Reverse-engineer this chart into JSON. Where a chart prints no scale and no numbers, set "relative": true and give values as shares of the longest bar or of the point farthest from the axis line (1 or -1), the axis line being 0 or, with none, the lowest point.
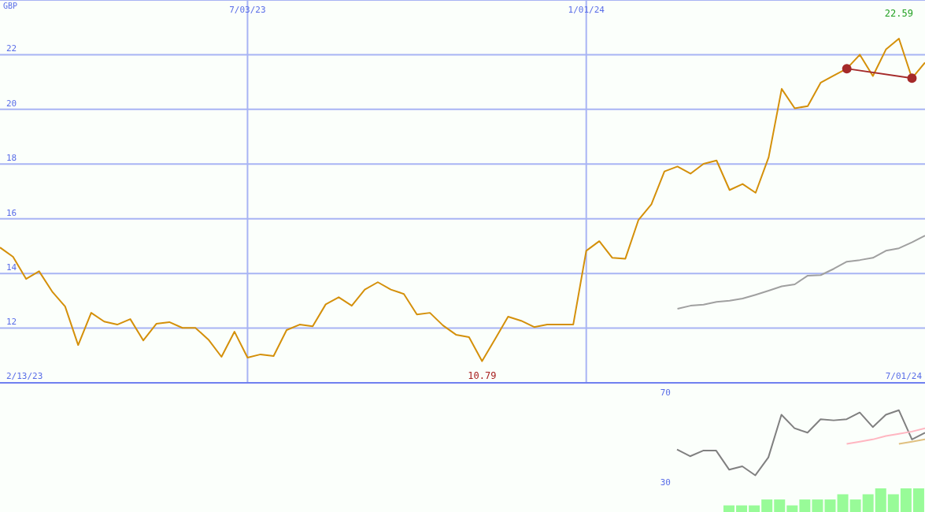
{
  "chart_data": [
    {
      "type": "line",
      "ylabel": "GBP",
      "x": [
        "2023-02-20",
        "2023-02-27",
        "2023-03-06",
        "2023-03-13",
        "2023-03-20",
        "2023-03-27",
        "2023-04-03",
        "2023-04-10",
        "2023-04-17",
        "2023-04-24",
        "2023-05-01",
        "2023-05-08",
        "2023-05-15",
        "2023-05-22",
        "2023-05-29",
        "2023-06-05",
        "2023-06-12",
        "2023-06-19",
        "2023-06-26",
        "2023-07-03",
        "2023-07-10",
        "2023-07-17",
        "2023-07-24",
        "2023-07-31",
        "2023-08-07",
        "2023-08-14",
        "2023-08-21",
        "2023-08-28",
        "2023-09-04",
        "2023-09-11",
        "2023-09-18",
        "2023-09-25",
        "2023-10-02",
        "2023-10-09",
        "2023-10-16",
        "2023-10-23",
        "2023-10-30",
        "2023-11-06",
        "2023-11-13",
        "2023-11-20",
        "2023-11-27",
        "2023-12-04",
        "2023-12-11",
        "2023-12-18",
        "2023-12-25",
        "2024-01-01",
        "2024-01-08",
        "2024-01-15",
        "2024-01-22",
        "2024-01-29",
        "2024-02-05",
        "2024-02-12",
        "2024-02-19",
        "2024-02-26",
        "2024-03-04",
        "2024-03-11",
        "2024-03-18",
        "2024-03-25",
        "2024-04-01",
        "2024-04-08",
        "2024-04-15",
        "2024-04-22",
        "2024-04-29",
        "2024-05-06",
        "2024-05-13",
        "2024-05-20",
        "2024-05-27",
        "2024-06-03",
        "2024-06-10",
        "2024-06-17",
        "2024-06-24",
        "2024-07-01"
      ],
      "xlim": [
        "2023-02-20",
        "2024-07-01"
      ],
      "xticks": [
        {
          "value": "2023-07-03",
          "label": "7/03/23"
        },
        {
          "value": "2024-01-01",
          "label": "1/01/24"
        }
      ],
      "ylim": [
        10,
        24
      ],
      "yticks": [
        12,
        14,
        16,
        18,
        20,
        22
      ],
      "grid": true,
      "series": [
        {
          "color": "#d4900a",
          "values": [
            14.95,
            14.61,
            13.8,
            14.08,
            13.34,
            12.79,
            11.38,
            12.56,
            12.24,
            12.13,
            12.33,
            11.55,
            12.16,
            12.22,
            12.01,
            12.01,
            11.58,
            10.95,
            11.87,
            10.92,
            11.04,
            10.98,
            11.93,
            12.13,
            12.07,
            12.87,
            13.13,
            12.82,
            13.41,
            13.68,
            13.41,
            13.25,
            12.5,
            12.56,
            12.1,
            11.76,
            11.67,
            10.79,
            11.6,
            12.42,
            12.27,
            12.04,
            12.13,
            12.13,
            12.13,
            14.83,
            15.18,
            14.57,
            14.54,
            15.95,
            16.53,
            17.73,
            17.91,
            17.65,
            18.01,
            18.13,
            17.05,
            17.27,
            16.95,
            18.25,
            20.75,
            20.04,
            20.12,
            20.98,
            21.24,
            21.49,
            22.0,
            21.22,
            22.19,
            22.59,
            21.14,
            21.71
          ]
        },
        {
          "color": "#a0a0a0",
          "x": [
            "2024-02-19",
            "2024-02-26",
            "2024-03-04",
            "2024-03-11",
            "2024-03-18",
            "2024-03-25",
            "2024-04-01",
            "2024-04-08",
            "2024-04-15",
            "2024-04-22",
            "2024-04-29",
            "2024-05-06",
            "2024-05-13",
            "2024-05-20",
            "2024-05-27",
            "2024-06-03",
            "2024-06-10",
            "2024-06-17",
            "2024-06-24",
            "2024-07-01"
          ],
          "values": [
            12.71,
            12.82,
            12.86,
            12.96,
            13.0,
            13.08,
            13.22,
            13.37,
            13.53,
            13.6,
            13.92,
            13.94,
            14.17,
            14.43,
            14.49,
            14.57,
            14.83,
            14.92,
            15.14,
            15.38
          ]
        },
        {
          "color": "#a52a2a",
          "marker": "circle",
          "x": [
            "2024-05-20",
            "2024-06-24"
          ],
          "values": [
            21.49,
            21.14
          ]
        }
      ],
      "annotations": [
        {
          "text": "22.59",
          "x": "2024-06-17",
          "y": 22.59
        },
        {
          "text": "10.79",
          "x": "2023-11-06",
          "y": 10.79
        },
        "2/13/23",
        "7/01/24"
      ]
    },
    {
      "type": "line",
      "categories": [
        null,
        null,
        null,
        null,
        null,
        null,
        null,
        null,
        null,
        null,
        null,
        null,
        null,
        null,
        null,
        null,
        null,
        null,
        null,
        null
      ],
      "tick_labels": "y",
      "ylim": [
        30,
        70
      ],
      "yticks": [
        30,
        70
      ],
      "series": [
        {
          "color": "#808080",
          "values": [
            44.5,
            41.5,
            44,
            44,
            35.5,
            37,
            33,
            41,
            60,
            54,
            52,
            58,
            57.5,
            58,
            61,
            54.5,
            60,
            62,
            49,
            52
          ]
        },
        {
          "color": "#ffb6c1",
          "values": [
            null,
            null,
            null,
            null,
            null,
            null,
            null,
            null,
            null,
            null,
            null,
            null,
            null,
            47,
            48,
            49,
            50.5,
            51.5,
            52.5,
            54
          ]
        },
        {
          "color": "#e0c080",
          "values": [
            null,
            null,
            null,
            null,
            null,
            null,
            null,
            null,
            null,
            null,
            null,
            null,
            null,
            null,
            null,
            null,
            null,
            47,
            48,
            49
          ]
        }
      ]
    },
    {
      "type": "bar",
      "relative": true,
      "categories": [
        null,
        null,
        null,
        null,
        null,
        null,
        null,
        null,
        null,
        null,
        null,
        null,
        null,
        null,
        null,
        null
      ],
      "tick_labels": false,
      "color": "#98fb98",
      "values": [
        0.28,
        0.28,
        0.28,
        0.53,
        0.53,
        0.28,
        0.53,
        0.53,
        0.53,
        0.75,
        0.53,
        0.75,
        1,
        0.75,
        1,
        1
      ]
    }
  ]
}
